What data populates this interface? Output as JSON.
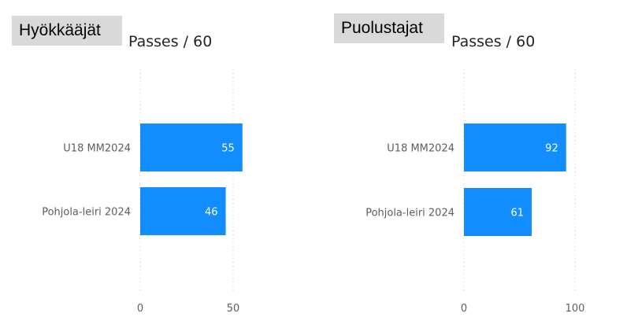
{
  "panels": [
    {
      "label": "Hyökkääjät"
    },
    {
      "label": "Puolustajat"
    }
  ],
  "colors": {
    "bar": "#118dff",
    "label_background": "#d9d9d9",
    "gridline": "#c8c6c4"
  },
  "chart_data": [
    {
      "type": "bar",
      "orientation": "horizontal",
      "title": "Passes / 60",
      "categories": [
        "U18 MM2024",
        "Pohjola-leiri 2024"
      ],
      "values": [
        55,
        46
      ],
      "xlim": [
        0,
        60
      ],
      "x_ticks": [
        0,
        50
      ],
      "grid": "vertical dotted",
      "data_labels": true
    },
    {
      "type": "bar",
      "orientation": "horizontal",
      "title": "Passes / 60",
      "categories": [
        "U18 MM2024",
        "Pohjola-leiri 2024"
      ],
      "values": [
        92,
        61
      ],
      "xlim": [
        0,
        100
      ],
      "x_ticks": [
        0,
        100
      ],
      "grid": "vertical dotted",
      "data_labels": true
    }
  ]
}
